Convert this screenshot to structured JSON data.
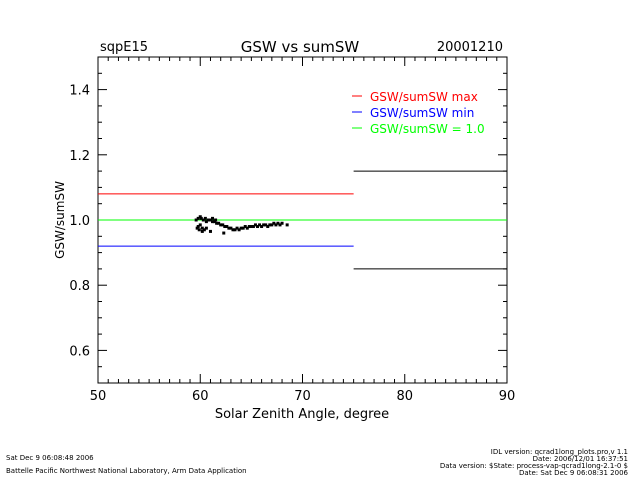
{
  "header": {
    "site": "sqpE15",
    "date": "20001210"
  },
  "footer": {
    "left": [
      "Sat Dec  9 06:08:48 2006",
      "Battelle Pacific Northwest National Laboratory, Arm Data Application"
    ],
    "right": [
      "IDL version: qcrad1long_plots.pro,v 1.1",
      "Date: 2006/12/01 16:37:51",
      "Data version: $State: process-vap-qcrad1long-2.1-0 $",
      "Date: Sat Dec  9 06:08:31 2006"
    ]
  },
  "chart_data": {
    "type": "scatter",
    "title": "GSW vs sumSW",
    "xlabel": "Solar Zenith Angle, degree",
    "ylabel": "GSW/sumSW",
    "xlim": [
      50,
      90
    ],
    "ylim": [
      0.5,
      1.5
    ],
    "xticks": [
      50,
      60,
      70,
      80,
      90
    ],
    "yticks": [
      0.6,
      0.8,
      1.0,
      1.2,
      1.4
    ],
    "xtick_labels": [
      "50",
      "60",
      "70",
      "80",
      "90"
    ],
    "ytick_labels": [
      "0.6",
      "0.8",
      "1.0",
      "1.2",
      "1.4"
    ],
    "legend": {
      "placement": "top-right",
      "entries": [
        {
          "label": "GSW/sumSW max",
          "color": "#ff0000"
        },
        {
          "label": "GSW/sumSW min",
          "color": "#0000ff"
        },
        {
          "label": "GSW/sumSW = 1.0",
          "color": "#00ff00"
        }
      ]
    },
    "lines": [
      {
        "name": "max",
        "color": "#ff0000",
        "x": [
          50,
          75
        ],
        "y": [
          1.08,
          1.08
        ]
      },
      {
        "name": "min",
        "color": "#0000ff",
        "x": [
          50,
          75
        ],
        "y": [
          0.92,
          0.92
        ]
      },
      {
        "name": "unity",
        "color": "#00ff00",
        "x": [
          50,
          90
        ],
        "y": [
          1.0,
          1.0
        ]
      },
      {
        "name": "upper-limit",
        "color": "#000000",
        "x": [
          75,
          90
        ],
        "y": [
          1.15,
          1.15
        ]
      },
      {
        "name": "lower-limit",
        "color": "#000000",
        "x": [
          75,
          90
        ],
        "y": [
          0.85,
          0.85
        ]
      }
    ],
    "series": [
      {
        "name": "GSW/sumSW",
        "color": "#000000",
        "x": [
          59.6,
          59.8,
          60.0,
          60.1,
          60.3,
          60.5,
          60.6,
          60.8,
          61.0,
          61.2,
          61.4,
          61.6,
          61.8,
          62.0,
          62.2,
          62.4,
          62.6,
          62.8,
          63.0,
          63.2,
          63.4,
          63.6,
          63.8,
          64.0,
          64.2,
          64.4,
          64.6,
          64.8,
          65.0,
          65.2,
          65.4,
          65.6,
          65.8,
          66.0,
          66.2,
          66.4,
          66.6,
          66.8,
          67.0,
          67.2,
          67.4,
          67.6,
          67.8,
          68.0,
          68.5,
          59.7,
          59.9,
          60.2,
          60.4,
          60.6,
          61.0,
          62.3,
          59.8,
          60.2,
          60.0,
          61.5,
          61.2,
          60.8
        ],
        "y": [
          1.0,
          1.005,
          1.01,
          1.005,
          1.0,
          1.005,
          0.995,
          1.0,
          1.0,
          0.995,
          0.995,
          0.99,
          0.99,
          0.985,
          0.985,
          0.98,
          0.98,
          0.975,
          0.975,
          0.97,
          0.97,
          0.975,
          0.97,
          0.975,
          0.975,
          0.98,
          0.975,
          0.98,
          0.98,
          0.98,
          0.985,
          0.98,
          0.985,
          0.98,
          0.985,
          0.985,
          0.98,
          0.985,
          0.985,
          0.99,
          0.985,
          0.99,
          0.985,
          0.99,
          0.985,
          0.975,
          0.97,
          0.975,
          0.97,
          0.975,
          0.965,
          0.96,
          0.98,
          0.965,
          0.985,
          1.0,
          1.005,
          1.0
        ]
      }
    ]
  }
}
